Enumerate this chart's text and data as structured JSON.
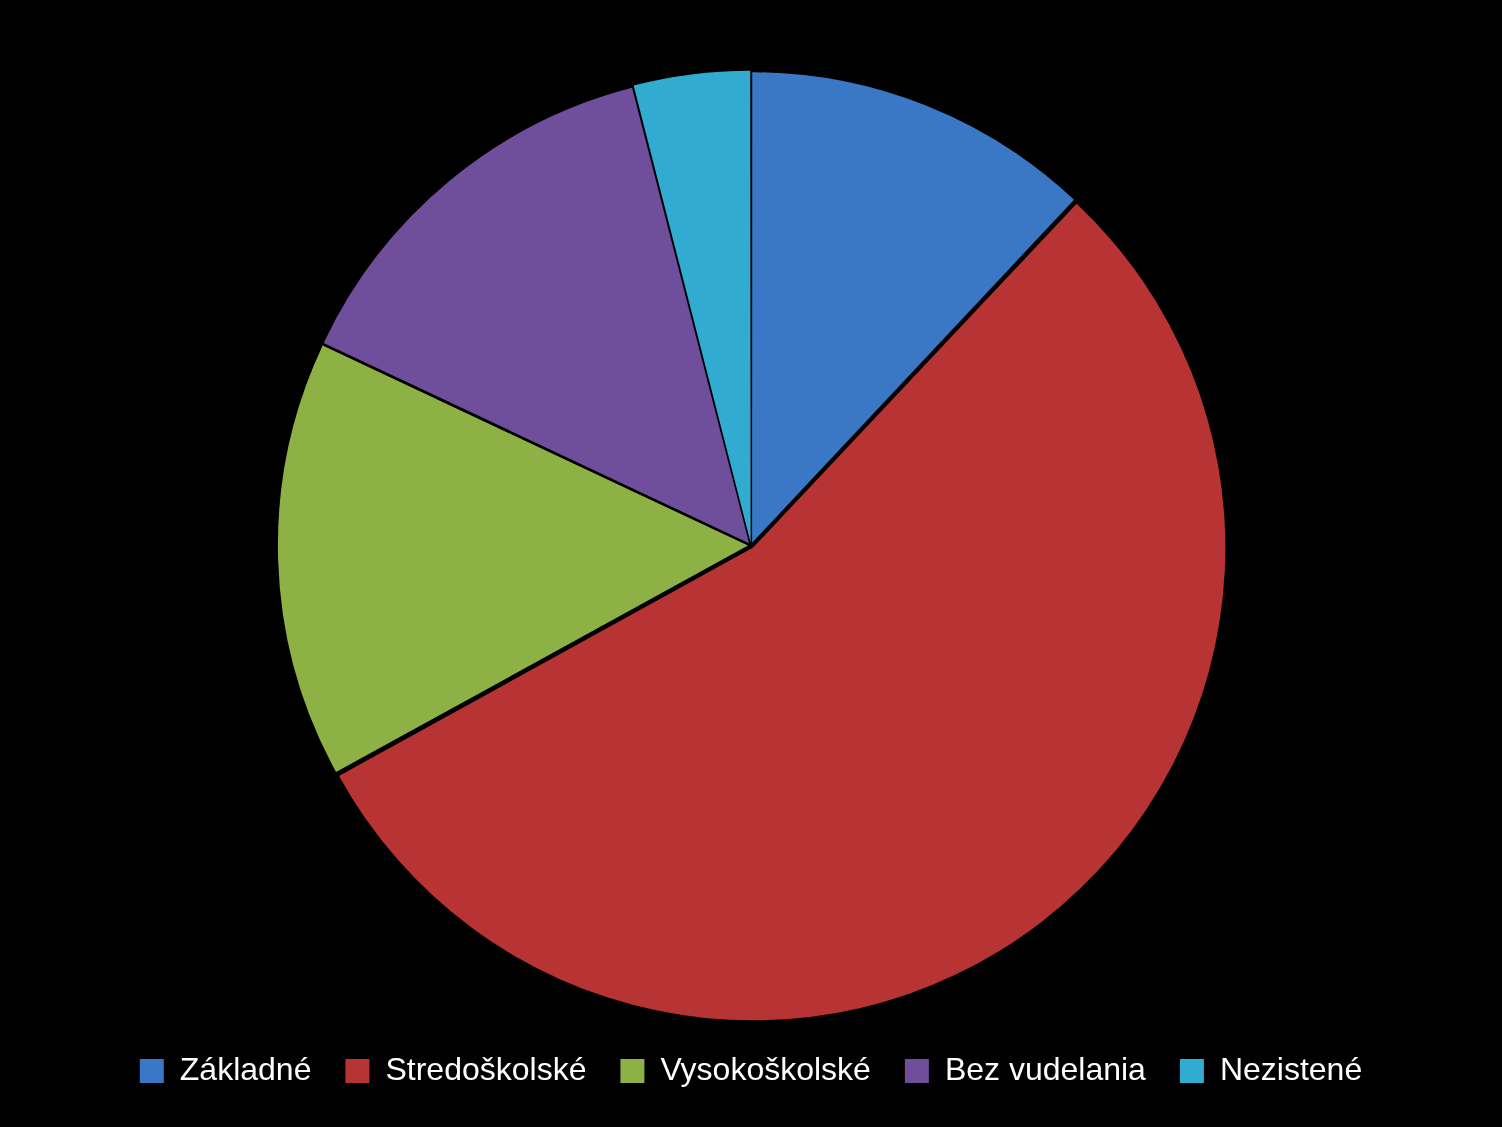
{
  "chart_data": {
    "type": "pie",
    "categories": [
      "Základné",
      "Stredoškolské",
      "Vysokoškolské",
      "Bez vudelania",
      "Nezistené"
    ],
    "values": [
      12,
      55,
      15,
      14,
      4
    ],
    "colors": [
      "#3a78c6",
      "#b83434",
      "#8db145",
      "#6f4f9c",
      "#31acd0"
    ],
    "legend": "bottom"
  }
}
